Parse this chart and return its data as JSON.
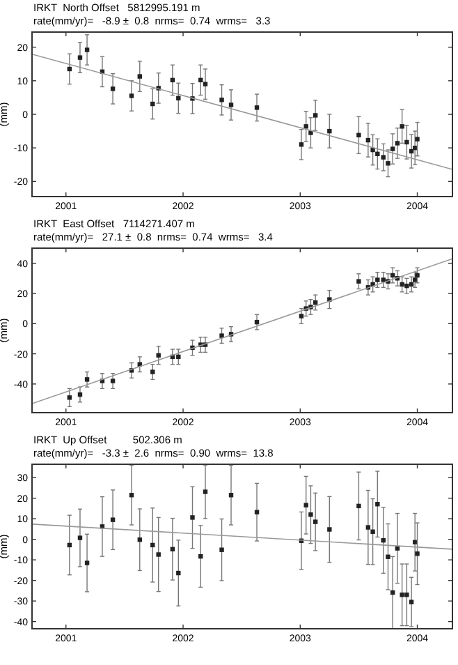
{
  "chart_data": [
    {
      "type": "scatter",
      "title": "IRKT  North Offset   5812995.191 m",
      "subtitle": "rate(mm/yr)=   -8.9 ±  0.8  nrms=  0.74  wrms=   3.3",
      "ylabel": "(mm)",
      "xlim": [
        2000.71,
        2004.3
      ],
      "xticks": [
        2001,
        2002,
        2003,
        2004
      ],
      "ylim": [
        -24.5,
        24.5
      ],
      "yticks": [
        -20,
        -10,
        0,
        10,
        20
      ],
      "series": [
        {
          "marker": "square",
          "color": "#222222",
          "x": [
            2001.03,
            2001.12,
            2001.18,
            2001.31,
            2001.4,
            2001.56,
            2001.63,
            2001.74,
            2001.79,
            2001.91,
            2001.96,
            2002.08,
            2002.15,
            2002.19,
            2002.33,
            2002.41,
            2002.63,
            2003.01,
            2003.05,
            2003.09,
            2003.13,
            2003.25,
            2003.5,
            2003.58,
            2003.62,
            2003.66,
            2003.71,
            2003.75,
            2003.79,
            2003.83,
            2003.87,
            2003.91,
            2003.95,
            2003.98,
            2004.0
          ],
          "values": [
            13.5,
            16.9,
            19.2,
            12.7,
            7.6,
            5.5,
            11.3,
            3.1,
            7.8,
            10.2,
            4.8,
            4.7,
            10.2,
            9.0,
            4.3,
            2.8,
            2.0,
            -9.0,
            -3.6,
            -5.5,
            -0.3,
            -5.0,
            -6.2,
            -7.7,
            -10.6,
            -11.8,
            -12.8,
            -14.6,
            -10.3,
            -8.6,
            -3.6,
            -8.3,
            -11.0,
            -10.0,
            -7.4
          ],
          "errors": [
            4.5,
            4.5,
            4.5,
            4.5,
            4.5,
            4.5,
            4.5,
            4.5,
            4.5,
            4.5,
            4.5,
            4.5,
            4.5,
            4.5,
            4.5,
            4.5,
            4,
            4.5,
            4.5,
            4.5,
            4.5,
            5,
            5.5,
            5,
            4.5,
            4.5,
            4,
            4,
            4.5,
            4.5,
            5,
            5,
            5,
            5,
            5
          ]
        },
        {
          "type": "line",
          "color": "#999999",
          "x": [
            2000.71,
            2004.3
          ],
          "values": [
            17.9,
            -16.4
          ]
        }
      ]
    },
    {
      "type": "scatter",
      "title": "IRKT  East Offset   7114271.407 m",
      "subtitle": "rate(mm/yr)=   27.1 ±  0.8  nrms=  0.74  wrms=   3.4",
      "ylabel": "(mm)",
      "xlim": [
        2000.71,
        2004.3
      ],
      "xticks": [
        2001,
        2002,
        2003,
        2004
      ],
      "ylim": [
        -59,
        50
      ],
      "yticks": [
        -40,
        -20,
        0,
        20,
        40
      ],
      "series": [
        {
          "marker": "square",
          "color": "#222222",
          "x": [
            2001.03,
            2001.12,
            2001.18,
            2001.31,
            2001.4,
            2001.56,
            2001.63,
            2001.74,
            2001.79,
            2001.91,
            2001.96,
            2002.08,
            2002.15,
            2002.19,
            2002.33,
            2002.41,
            2002.63,
            2003.01,
            2003.05,
            2003.09,
            2003.13,
            2003.25,
            2003.5,
            2003.58,
            2003.62,
            2003.66,
            2003.71,
            2003.75,
            2003.79,
            2003.83,
            2003.87,
            2003.91,
            2003.95,
            2003.98,
            2004.0
          ],
          "values": [
            -49,
            -47,
            -37,
            -38,
            -38,
            -31,
            -27,
            -32,
            -21,
            -22,
            -22,
            -16,
            -14,
            -14,
            -8,
            -7,
            1,
            5,
            10,
            11,
            14,
            16,
            28,
            24,
            26,
            29,
            29,
            28,
            32,
            30,
            26,
            25,
            26,
            29,
            32
          ],
          "errors": [
            6,
            5,
            5,
            5,
            5,
            5,
            5,
            5,
            6,
            5,
            5,
            5,
            5,
            5,
            5,
            5,
            5,
            5,
            5,
            5,
            5,
            6,
            5,
            5,
            5,
            5,
            5,
            5,
            5,
            5,
            5,
            5,
            5,
            5,
            5
          ]
        },
        {
          "type": "line",
          "color": "#999999",
          "x": [
            2000.71,
            2004.3
          ],
          "values": [
            -53,
            43
          ]
        }
      ]
    },
    {
      "type": "scatter",
      "title": "IRKT  Up Offset         502.306 m",
      "subtitle": "rate(mm/yr)=   -3.3 ±  2.6  nrms=  0.90  wrms=  13.8",
      "ylabel": "(mm)",
      "xlim": [
        2000.71,
        2004.3
      ],
      "xticks": [
        2001,
        2002,
        2003,
        2004
      ],
      "ylim": [
        -43.5,
        36.5
      ],
      "yticks": [
        -40,
        -30,
        -20,
        -10,
        0,
        10,
        20,
        30
      ],
      "series": [
        {
          "marker": "square",
          "color": "#222222",
          "x": [
            2001.03,
            2001.12,
            2001.18,
            2001.31,
            2001.4,
            2001.56,
            2001.63,
            2001.74,
            2001.79,
            2001.91,
            2001.96,
            2002.08,
            2002.15,
            2002.19,
            2002.33,
            2002.41,
            2002.63,
            2003.01,
            2003.05,
            2003.09,
            2003.13,
            2003.25,
            2003.5,
            2003.58,
            2003.62,
            2003.66,
            2003.71,
            2003.75,
            2003.79,
            2003.83,
            2003.87,
            2003.91,
            2003.95,
            2003.98,
            2004.0
          ],
          "values": [
            -2.8,
            0.7,
            -11.5,
            6.2,
            9.5,
            21.5,
            -0.2,
            -2.8,
            -7.4,
            -4.8,
            -16.4,
            10.6,
            -8.3,
            23.1,
            -5.1,
            21.5,
            13.2,
            -0.7,
            16.6,
            12.0,
            8.5,
            4.8,
            16.2,
            5.8,
            3.7,
            17.1,
            -0.5,
            -8.5,
            -25.9,
            -4.4,
            -27.0,
            -27.0,
            -30.5,
            -1.4,
            -7.0
          ],
          "errors": [
            14.5,
            14,
            14,
            14.5,
            14.5,
            14.5,
            15,
            18,
            18,
            15,
            16,
            15,
            15,
            13,
            15,
            14.5,
            14,
            14,
            14,
            14,
            14,
            16,
            16.5,
            18,
            16,
            16,
            16,
            16,
            17.5,
            17,
            15,
            15,
            12,
            14,
            15
          ]
        },
        {
          "type": "line",
          "color": "#999999",
          "x": [
            2000.71,
            2004.3
          ],
          "values": [
            7.4,
            -4.8
          ]
        }
      ]
    }
  ]
}
